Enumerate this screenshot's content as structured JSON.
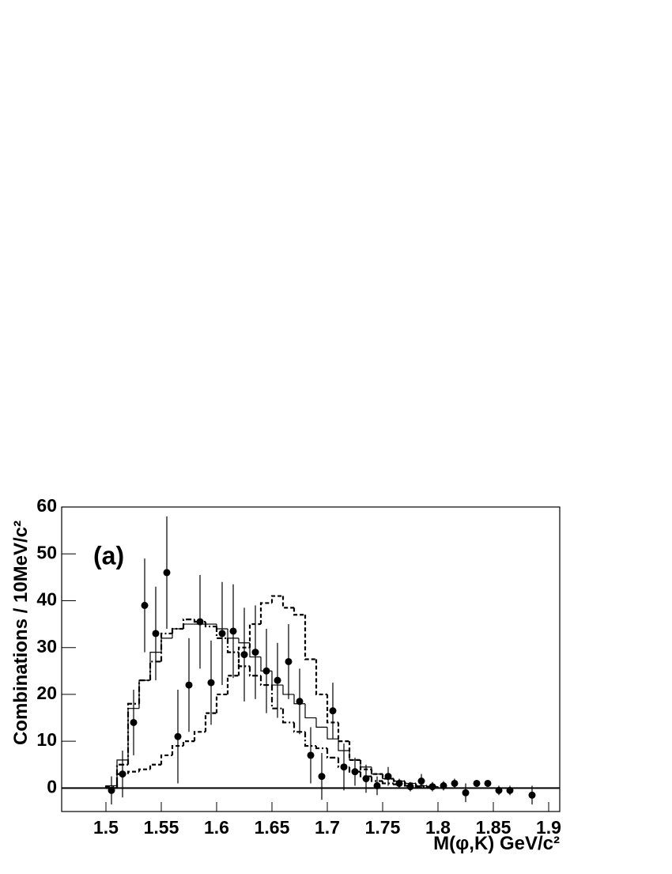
{
  "chart_data": {
    "type": "histogram",
    "annotation": "(a)",
    "xlabel": "M(φ,K)    GeV/c²",
    "ylabel": "Combinations / 10MeV/c²",
    "xlim": [
      1.46,
      1.91
    ],
    "ylim": [
      -5,
      60
    ],
    "xticks": [
      1.5,
      1.55,
      1.6,
      1.65,
      1.7,
      1.75,
      1.8,
      1.85,
      1.9
    ],
    "yticks": [
      0,
      10,
      20,
      30,
      40,
      50,
      60
    ],
    "bins": [
      1.5,
      1.51,
      1.52,
      1.53,
      1.54,
      1.55,
      1.56,
      1.57,
      1.58,
      1.59,
      1.6,
      1.61,
      1.62,
      1.63,
      1.64,
      1.65,
      1.66,
      1.67,
      1.68,
      1.69,
      1.7,
      1.71,
      1.72,
      1.73,
      1.74,
      1.75,
      1.76,
      1.77,
      1.78,
      1.79,
      1.8
    ],
    "series": [
      {
        "style": "solid",
        "color": "#000000",
        "values": [
          0.5,
          6,
          17,
          23,
          29,
          32,
          34,
          35,
          35,
          35,
          34,
          32,
          31,
          28,
          25,
          22,
          20,
          18,
          15,
          13,
          10.5,
          8,
          6,
          4.5,
          3,
          2,
          1.5,
          1,
          0.5,
          0.3
        ]
      },
      {
        "style": "dashdot",
        "color": "#000000",
        "values": [
          0.3,
          5,
          18,
          23,
          27,
          33,
          34,
          36,
          35.5,
          34.5,
          32,
          29,
          26,
          24,
          22,
          17,
          14,
          12,
          9,
          8.5,
          6.5,
          4.5,
          3.5,
          2.5,
          1.5,
          1,
          0.8,
          0.5,
          0.3,
          0.2
        ]
      },
      {
        "style": "dashed",
        "color": "#000000",
        "values": [
          0,
          3,
          3.5,
          4,
          5,
          7,
          9,
          10,
          12,
          16,
          20,
          24,
          30,
          35,
          39.5,
          41,
          38.5,
          37,
          27.5,
          20,
          14,
          10,
          6,
          4,
          3,
          2,
          1.5,
          1,
          0.5,
          0.3
        ]
      }
    ],
    "points": {
      "color": "#000000",
      "x": [
        1.505,
        1.515,
        1.525,
        1.535,
        1.545,
        1.555,
        1.565,
        1.575,
        1.585,
        1.595,
        1.605,
        1.615,
        1.625,
        1.635,
        1.645,
        1.655,
        1.665,
        1.675,
        1.685,
        1.695,
        1.705,
        1.715,
        1.725,
        1.735,
        1.745,
        1.755,
        1.765,
        1.775,
        1.785,
        1.795,
        1.805,
        1.815,
        1.825,
        1.835,
        1.845,
        1.855,
        1.865,
        1.885
      ],
      "values": [
        -0.5,
        3,
        14,
        39,
        33,
        46,
        11,
        22,
        35.5,
        22.5,
        33,
        33.5,
        28.5,
        29,
        25,
        23,
        27,
        18.5,
        7,
        2.5,
        16.5,
        4.5,
        3.5,
        2,
        0.5,
        2.5,
        1,
        0.3,
        1.5,
        0.3,
        0.5,
        1,
        -1,
        1,
        1,
        -0.5,
        -0.5,
        -1.5
      ],
      "errors": [
        3,
        5,
        7,
        10,
        10,
        12,
        10,
        10,
        10,
        9,
        11,
        10,
        10,
        10,
        9,
        8,
        8,
        7,
        6,
        5,
        6,
        5,
        3,
        3,
        2,
        2,
        1,
        1,
        1.5,
        1,
        1,
        1,
        2,
        0.5,
        0.5,
        1,
        1,
        2
      ]
    }
  }
}
